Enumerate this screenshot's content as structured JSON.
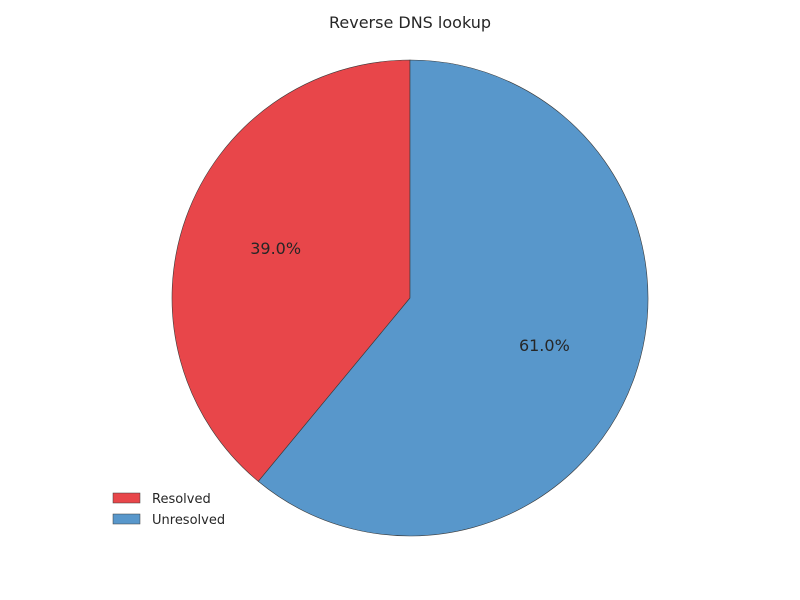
{
  "chart_data": {
    "type": "pie",
    "title": "Reverse DNS lookup",
    "categories": [
      "Resolved",
      "Unresolved"
    ],
    "values": [
      39.0,
      61.0
    ],
    "labels": [
      "39.0%",
      "61.0%"
    ],
    "colors": [
      "#e8464a",
      "#5897cb"
    ],
    "start_angle_deg": 90,
    "direction": "counterclockwise",
    "legend_position": "lower-left"
  }
}
